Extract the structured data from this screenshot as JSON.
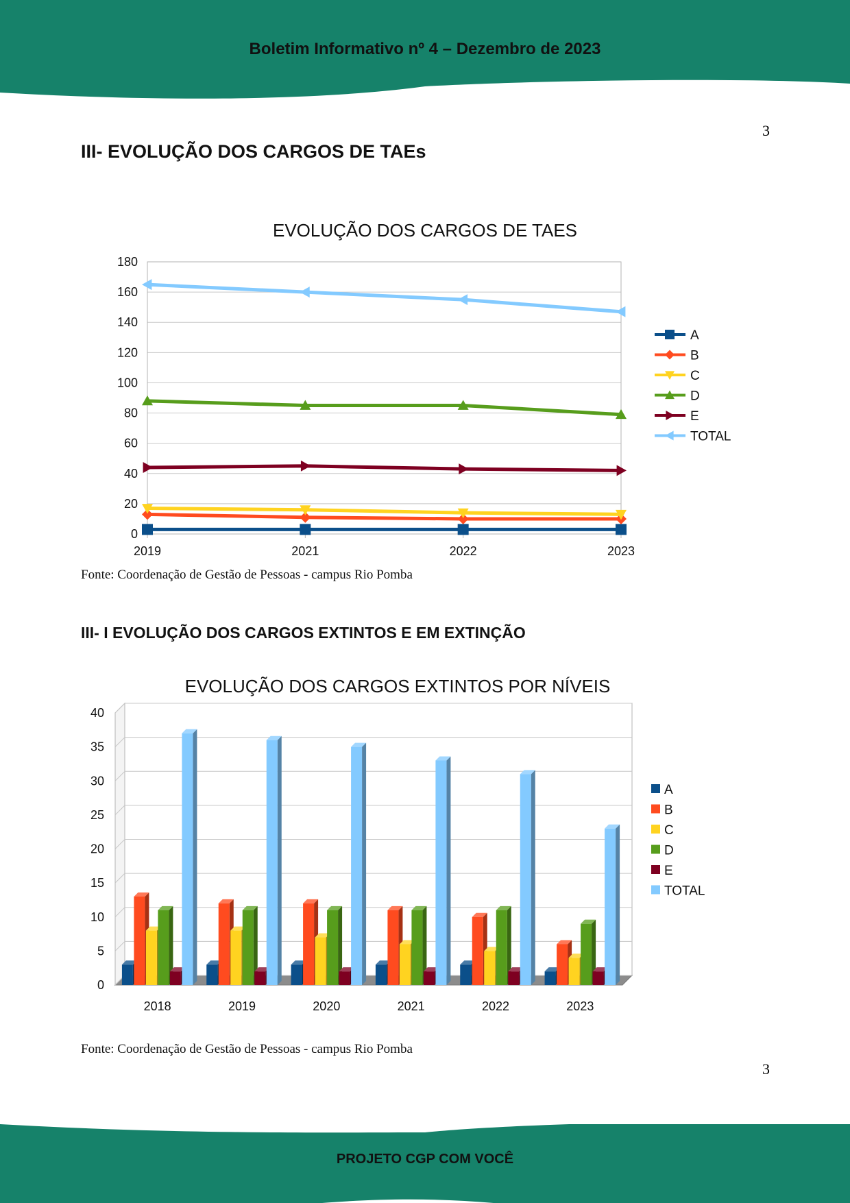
{
  "header": {
    "title": "Boletim Informativo nº 4 – Dezembro de 2023"
  },
  "footer": {
    "title": "PROJETO CGP COM VOCÊ"
  },
  "page_number_top": "3",
  "page_number_bottom": "3",
  "section1": {
    "title": "III- EVOLUÇÃO DOS CARGOS DE TAEs",
    "source": "Fonte: Coordenação de Gestão de Pessoas - campus Rio Pomba"
  },
  "section2": {
    "title": "III- I EVOLUÇÃO DOS CARGOS EXTINTOS E EM EXTINÇÃO",
    "source": "Fonte: Coordenação de Gestão de Pessoas - campus Rio Pomba"
  },
  "colors": {
    "brand_green": "#16826a"
  },
  "chart_data": [
    {
      "type": "line",
      "title": "EVOLUÇÃO DOS CARGOS DE TAES",
      "categories": [
        "2019",
        "2021",
        "2022",
        "2023"
      ],
      "ylim": [
        0,
        180
      ],
      "yticks": [
        0,
        20,
        40,
        60,
        80,
        100,
        120,
        140,
        160,
        180
      ],
      "grid": true,
      "legend": "right",
      "series": [
        {
          "name": "A",
          "values": [
            3,
            3,
            3,
            3
          ],
          "color": "#0b4f8a",
          "marker": "square"
        },
        {
          "name": "B",
          "values": [
            13,
            11,
            10,
            10
          ],
          "color": "#ff4b1f",
          "marker": "diamond"
        },
        {
          "name": "C",
          "values": [
            17,
            16,
            14,
            13
          ],
          "color": "#ffd320",
          "marker": "triangle-down"
        },
        {
          "name": "D",
          "values": [
            88,
            85,
            85,
            79
          ],
          "color": "#579d1c",
          "marker": "triangle-up"
        },
        {
          "name": "E",
          "values": [
            44,
            45,
            43,
            42
          ],
          "color": "#7e0021",
          "marker": "triangle-right"
        },
        {
          "name": "TOTAL",
          "values": [
            165,
            160,
            155,
            147
          ],
          "color": "#83caff",
          "marker": "triangle-left"
        }
      ]
    },
    {
      "type": "bar",
      "title": "EVOLUÇÃO DOS CARGOS EXTINTOS POR NÍVEIS",
      "categories": [
        "2018",
        "2019",
        "2020",
        "2021",
        "2022",
        "2023"
      ],
      "ylim": [
        0,
        40
      ],
      "yticks": [
        0,
        5,
        10,
        15,
        20,
        25,
        30,
        35,
        40
      ],
      "grid": true,
      "legend": "right",
      "series": [
        {
          "name": "A",
          "values": [
            3,
            3,
            3,
            3,
            3,
            2
          ],
          "color": "#0b4f8a"
        },
        {
          "name": "B",
          "values": [
            13,
            12,
            12,
            11,
            10,
            6
          ],
          "color": "#ff4b1f"
        },
        {
          "name": "C",
          "values": [
            8,
            8,
            7,
            6,
            5,
            4
          ],
          "color": "#ffd320"
        },
        {
          "name": "D",
          "values": [
            11,
            11,
            11,
            11,
            11,
            9
          ],
          "color": "#579d1c"
        },
        {
          "name": "E",
          "values": [
            2,
            2,
            2,
            2,
            2,
            2
          ],
          "color": "#7e0021"
        },
        {
          "name": "TOTAL",
          "values": [
            37,
            36,
            35,
            33,
            31,
            23
          ],
          "color": "#83caff"
        }
      ]
    }
  ]
}
